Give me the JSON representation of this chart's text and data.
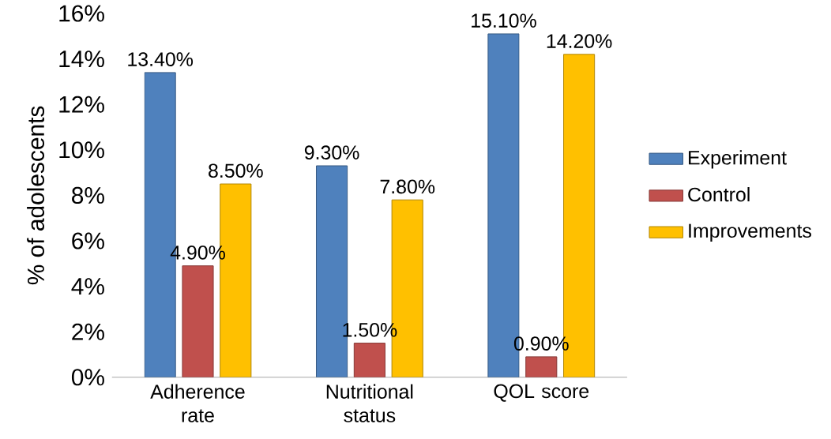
{
  "chart_data": {
    "type": "bar",
    "ylabel": "% of adolescents",
    "categories": [
      "Adherence rate",
      "Nutritional status",
      "QOL score"
    ],
    "series": [
      {
        "name": "Experiment",
        "color": "#4f81bd",
        "values": [
          13.4,
          9.3,
          15.1
        ],
        "value_labels": [
          "13.40%",
          "9.30%",
          "15.10%"
        ]
      },
      {
        "name": "Control",
        "color": "#c0504d",
        "values": [
          4.9,
          1.5,
          0.9
        ],
        "value_labels": [
          "4.90%",
          "1.50%",
          "0.90%"
        ]
      },
      {
        "name": "Improvements",
        "color": "#ffc000",
        "values": [
          8.5,
          7.8,
          14.2
        ],
        "value_labels": [
          "8.50%",
          "7.80%",
          "14.20%"
        ]
      }
    ],
    "ylim": [
      0,
      16
    ],
    "yticks": [
      {
        "value": 0,
        "label": "0%"
      },
      {
        "value": 2,
        "label": "2%"
      },
      {
        "value": 4,
        "label": "4%"
      },
      {
        "value": 6,
        "label": "6%"
      },
      {
        "value": 8,
        "label": "8%"
      },
      {
        "value": 10,
        "label": "10%"
      },
      {
        "value": 12,
        "label": "12%"
      },
      {
        "value": 14,
        "label": "14%"
      },
      {
        "value": 16,
        "label": "16%"
      }
    ],
    "grid": false,
    "legend": "right"
  }
}
